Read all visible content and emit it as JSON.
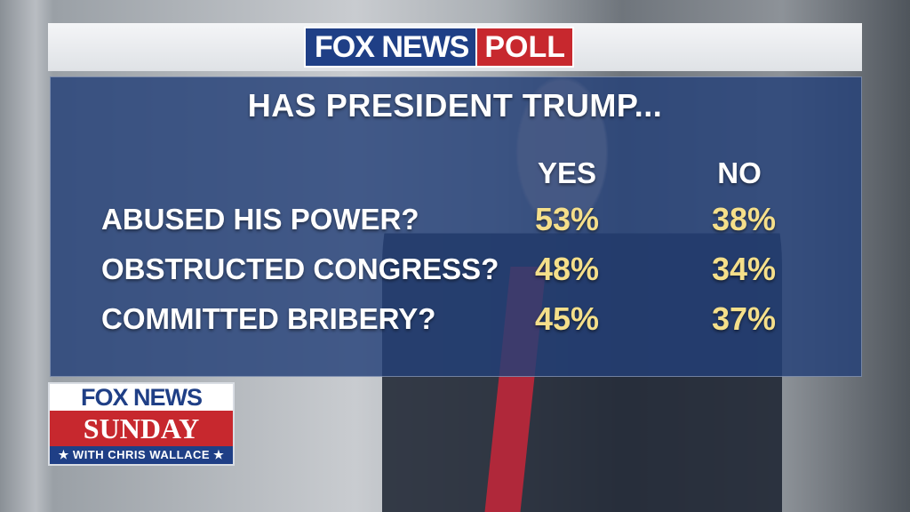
{
  "header": {
    "logo_brand": "FOX NEWS",
    "logo_tag": "POLL"
  },
  "poll": {
    "question": "HAS PRESIDENT TRUMP...",
    "columns": [
      "YES",
      "NO"
    ],
    "rows": [
      {
        "label": "ABUSED HIS POWER?",
        "yes": "53%",
        "no": "38%"
      },
      {
        "label": "OBSTRUCTED CONGRESS?",
        "yes": "48%",
        "no": "34%"
      },
      {
        "label": "COMMITTED BRIBERY?",
        "yes": "45%",
        "no": "37%"
      }
    ]
  },
  "show_logo": {
    "brand": "FOX NEWS",
    "title": "SUNDAY",
    "host": "★ WITH CHRIS WALLACE ★"
  },
  "colors": {
    "panel_blue": "#234078",
    "percent_yellow": "#f5df8a",
    "fox_blue": "#1f3f86",
    "fox_red": "#c7282e"
  }
}
